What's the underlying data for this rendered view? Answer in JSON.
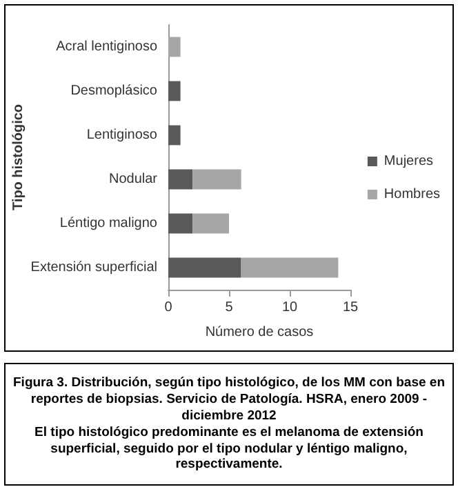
{
  "chart_data": {
    "type": "bar",
    "orientation": "horizontal",
    "stacked": true,
    "ylabel": "Tipo histológico",
    "xlabel": "Número de casos",
    "categories": [
      "Acral lentiginoso",
      "Desmoplásico",
      "Lentiginoso",
      "Nodular",
      "Léntigo maligno",
      "Extensión superficial"
    ],
    "series": [
      {
        "name": "Mujeres",
        "color": "#595959",
        "values": [
          0,
          1,
          1,
          2,
          2,
          6
        ]
      },
      {
        "name": "Hombres",
        "color": "#a6a6a6",
        "values": [
          1,
          0,
          0,
          4,
          3,
          8
        ]
      }
    ],
    "xlim": [
      0,
      15
    ],
    "xticks": [
      0,
      5,
      10,
      15
    ],
    "grid": false,
    "legend": "right",
    "annotations": [
      "Figura 3. Distribución, según tipo histológico, de los MM con base en reportes de biopsias. Servicio de Patología. HSRA, enero 2009 - diciembre 2012",
      "El tipo histológico predominante es el melanoma de extensión superficial, seguido por el tipo nodular y léntigo maligno, respectivamente."
    ]
  }
}
